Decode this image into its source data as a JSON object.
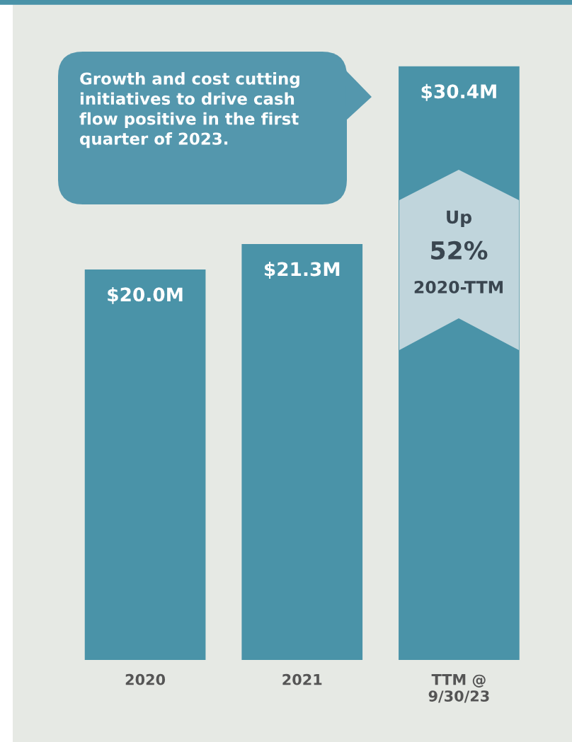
{
  "chart_data": {
    "type": "bar",
    "categories": [
      "2020",
      "2021",
      "TTM @\n9/30/23"
    ],
    "values": [
      20.0,
      21.3,
      30.4
    ],
    "value_labels": [
      "$20.0M",
      "$21.3M",
      "$30.4M"
    ],
    "color": "#4a93a8",
    "tick_labels": "x",
    "grid": false,
    "legend": false,
    "annotations": [
      "Growth and cost cutting\ninitiatives to drive cash\nflow positive in the first\nquarter of 2023.",
      "Up",
      "52%",
      "2020-TTM"
    ]
  }
}
